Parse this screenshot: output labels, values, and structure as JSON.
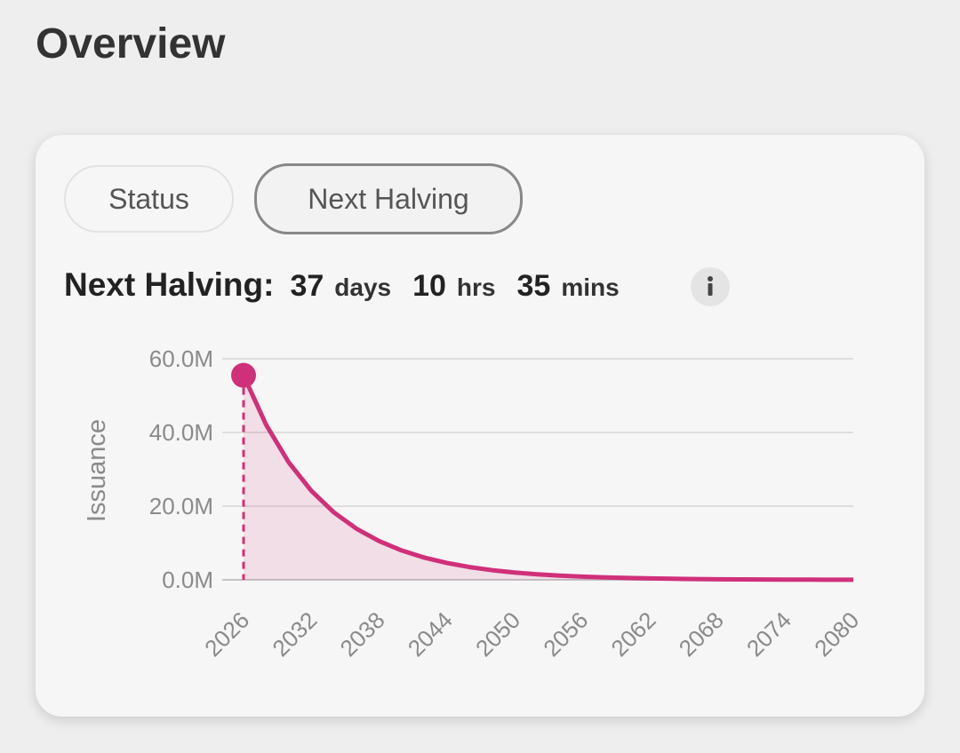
{
  "header": {
    "title": "Overview"
  },
  "tabs": [
    "Status",
    "Next Halving"
  ],
  "countdown": {
    "label": "Next Halving:",
    "parts": [
      {
        "value": 37,
        "unit": "days"
      },
      {
        "value": 10,
        "unit": "hrs"
      },
      {
        "value": 35,
        "unit": "mins"
      }
    ]
  },
  "chart_data": {
    "type": "area",
    "y_label": "Issuance",
    "color": "#d0307a",
    "grid": true,
    "x": [
      2026,
      2028,
      2030,
      2032,
      2034,
      2036,
      2038,
      2040,
      2042,
      2044,
      2046,
      2048,
      2050,
      2052,
      2054,
      2056,
      2058,
      2060,
      2062,
      2064,
      2066,
      2068,
      2070,
      2072,
      2074,
      2076,
      2078,
      2080
    ],
    "values": [
      55500000,
      42060000,
      31880000,
      24160000,
      18310000,
      13880000,
      10520000,
      7970000,
      6040000,
      4580000,
      3470000,
      2630000,
      1990000,
      1510000,
      1150000,
      870000,
      660000,
      500000,
      380000,
      290000,
      220000,
      160000,
      120000,
      90000,
      70000,
      50000,
      40000,
      30000
    ],
    "xlim": [
      2026,
      2080
    ],
    "xticks": [
      2026,
      2032,
      2038,
      2044,
      2050,
      2056,
      2062,
      2068,
      2074,
      2080
    ],
    "ylim": [
      0,
      60000000
    ],
    "yticks": [
      {
        "value": 0,
        "label": "0.0M"
      },
      {
        "value": 20000000,
        "label": "20.0M"
      },
      {
        "value": 40000000,
        "label": "40.0M"
      },
      {
        "value": 60000000,
        "label": "60.0M"
      }
    ]
  }
}
